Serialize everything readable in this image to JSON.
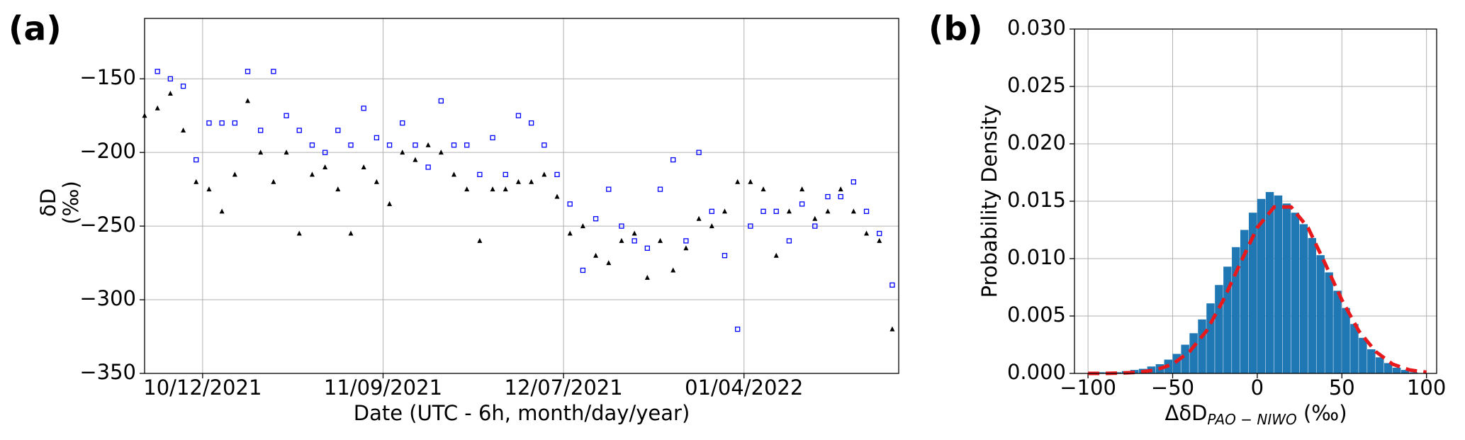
{
  "chart_data": [
    {
      "type": "scatter",
      "panel_label": "(a)",
      "xlabel": "Date (UTC - 6h, month/day/year)",
      "ylabel": [
        "δD",
        "(‰)"
      ],
      "xlim": [
        "2021-10-03",
        "2022-01-28"
      ],
      "ylim": [
        -350,
        -109
      ],
      "xticks": [
        {
          "value": "2021-10-12",
          "label": "10/12/2021"
        },
        {
          "value": "2021-11-09",
          "label": "11/09/2021"
        },
        {
          "value": "2021-12-07",
          "label": "12/07/2021"
        },
        {
          "value": "2022-01-04",
          "label": "01/04/2022"
        }
      ],
      "yticks": [
        {
          "value": -350,
          "label": "−350"
        },
        {
          "value": -300,
          "label": "−300"
        },
        {
          "value": -250,
          "label": "−250"
        },
        {
          "value": -200,
          "label": "−200"
        },
        {
          "value": -150,
          "label": "−150"
        }
      ],
      "grid": true,
      "x": [
        "2021-10-03",
        "2021-10-05",
        "2021-10-07",
        "2021-10-09",
        "2021-10-11",
        "2021-10-13",
        "2021-10-15",
        "2021-10-17",
        "2021-10-19",
        "2021-10-21",
        "2021-10-23",
        "2021-10-25",
        "2021-10-27",
        "2021-10-29",
        "2021-10-31",
        "2021-11-02",
        "2021-11-04",
        "2021-11-06",
        "2021-11-08",
        "2021-11-10",
        "2021-11-12",
        "2021-11-14",
        "2021-11-16",
        "2021-11-18",
        "2021-11-20",
        "2021-11-22",
        "2021-11-24",
        "2021-11-26",
        "2021-11-28",
        "2021-11-30",
        "2021-12-02",
        "2021-12-04",
        "2021-12-06",
        "2021-12-08",
        "2021-12-10",
        "2021-12-12",
        "2021-12-14",
        "2021-12-16",
        "2021-12-18",
        "2021-12-20",
        "2021-12-22",
        "2021-12-24",
        "2021-12-26",
        "2021-12-28",
        "2021-12-30",
        "2022-01-01",
        "2022-01-03",
        "2022-01-05",
        "2022-01-07",
        "2022-01-09",
        "2022-01-11",
        "2022-01-13",
        "2022-01-15",
        "2022-01-17",
        "2022-01-19",
        "2022-01-21",
        "2022-01-23",
        "2022-01-25",
        "2022-01-27"
      ],
      "series": [
        {
          "color": "#000000",
          "marker": "triangle",
          "values": [
            -175,
            -170,
            -160,
            -185,
            -220,
            -225,
            -240,
            -215,
            -165,
            -200,
            -220,
            -200,
            -255,
            -215,
            -210,
            -225,
            -255,
            -210,
            -220,
            -235,
            -200,
            -205,
            -195,
            -200,
            -215,
            -225,
            -260,
            -225,
            -225,
            -220,
            -220,
            -215,
            -230,
            -255,
            -250,
            -270,
            -275,
            -260,
            -255,
            -285,
            -260,
            -280,
            -265,
            -245,
            -250,
            -240,
            -220,
            -220,
            -225,
            -270,
            -240,
            -225,
            -245,
            -240,
            -225,
            -240,
            -255,
            -260,
            -320
          ]
        },
        {
          "color": "#0000ff",
          "marker": "square",
          "values": [
            null,
            -145,
            -150,
            -155,
            -205,
            -180,
            -180,
            -180,
            -145,
            -185,
            -145,
            -175,
            -185,
            -195,
            -200,
            -185,
            -195,
            -170,
            -190,
            -195,
            -180,
            -195,
            -210,
            -165,
            -195,
            -195,
            -215,
            -190,
            -215,
            -175,
            -180,
            -195,
            -215,
            -235,
            -280,
            -245,
            -225,
            -250,
            -260,
            -265,
            -225,
            -205,
            -260,
            -200,
            -240,
            -270,
            -320,
            -250,
            -240,
            -240,
            -260,
            -235,
            -250,
            -230,
            -230,
            -220,
            -240,
            -255,
            -290
          ]
        }
      ]
    },
    {
      "type": "histogram",
      "panel_label": "(b)",
      "xlabel": {
        "main": "ΔδD",
        "sub": "PAO − NIWO",
        "unit": " (‰)"
      },
      "ylabel": "Probability Density",
      "xlim": [
        -108,
        106
      ],
      "ylim": [
        0,
        0.03
      ],
      "xticks": [
        {
          "value": -100,
          "label": "−100"
        },
        {
          "value": -50,
          "label": "−50"
        },
        0,
        50,
        100
      ],
      "yticks": [
        {
          "value": 0,
          "label": "0.000"
        },
        {
          "value": 0.005,
          "label": "0.005"
        },
        {
          "value": 0.01,
          "label": "0.010"
        },
        {
          "value": 0.015,
          "label": "0.015"
        },
        {
          "value": 0.02,
          "label": "0.020"
        },
        {
          "value": 0.025,
          "label": "0.025"
        },
        {
          "value": 0.03,
          "label": "0.030"
        }
      ],
      "grid": true,
      "color": "#1f77b4",
      "bins": [
        -100,
        -95,
        -90,
        -85,
        -80,
        -75,
        -70,
        -65,
        -60,
        -55,
        -50,
        -45,
        -40,
        -35,
        -30,
        -25,
        -20,
        -15,
        -10,
        -5,
        0,
        5,
        10,
        15,
        20,
        25,
        30,
        35,
        40,
        45,
        50,
        55,
        60,
        65,
        70,
        75,
        80,
        85,
        90,
        95,
        100
      ],
      "values": [
        0,
        0.0001,
        0.0001,
        0.0001,
        0.0002,
        0.0003,
        0.0004,
        0.0006,
        0.0008,
        0.0012,
        0.0017,
        0.0025,
        0.0035,
        0.0047,
        0.0061,
        0.0077,
        0.0093,
        0.011,
        0.0125,
        0.014,
        0.0152,
        0.0158,
        0.0155,
        0.0148,
        0.014,
        0.013,
        0.0118,
        0.0103,
        0.0088,
        0.0072,
        0.0057,
        0.0043,
        0.0031,
        0.0021,
        0.0014,
        0.0009,
        0.0005,
        0.0003,
        0.0001,
        0
      ],
      "fit": {
        "color": "#e8191c",
        "x": [
          -100,
          -90,
          -80,
          -70,
          -60,
          -50,
          -40,
          -30,
          -20,
          -10,
          0,
          10,
          20,
          30,
          40,
          50,
          60,
          70,
          80,
          90,
          100
        ],
        "values": [
          0,
          0,
          3e-05,
          0.0001,
          0.0003,
          0.0008,
          0.0019,
          0.0037,
          0.0064,
          0.0096,
          0.0127,
          0.0145,
          0.0145,
          0.0127,
          0.0096,
          0.0064,
          0.0037,
          0.0019,
          0.0008,
          0.0003,
          0.0001
        ]
      }
    }
  ]
}
